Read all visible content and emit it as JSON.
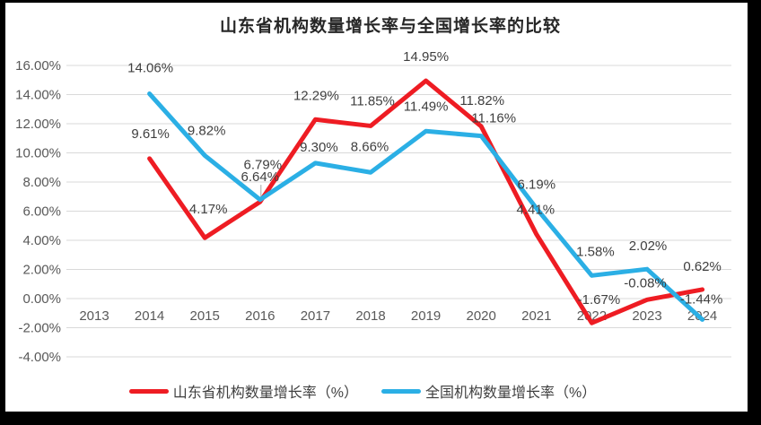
{
  "chart_data": {
    "type": "line",
    "title": "山东省机构数量增长率与全国增长率的比较",
    "categories": [
      "2013",
      "2014",
      "2015",
      "2016",
      "2017",
      "2018",
      "2019",
      "2020",
      "2021",
      "2022",
      "2023",
      "2024"
    ],
    "xlabel": "",
    "ylabel": "",
    "ylim": [
      -4,
      16
    ],
    "y_tick_step": 2,
    "y_ticks": [
      "16.00%",
      "14.00%",
      "12.00%",
      "10.00%",
      "8.00%",
      "6.00%",
      "4.00%",
      "2.00%",
      "0.00%",
      "-2.00%",
      "-4.00%"
    ],
    "grid": true,
    "legend_position": "bottom",
    "series": [
      {
        "name": "山东省机构数量增长率（%）",
        "color": "#ee1c23",
        "values": [
          null,
          9.61,
          4.17,
          6.64,
          12.29,
          11.85,
          14.95,
          11.82,
          4.41,
          -1.67,
          -0.08,
          0.62
        ],
        "point_labels": [
          "",
          "9.61%",
          "4.17%",
          "6.64%",
          "12.29%",
          "11.85%",
          "14.95%",
          "11.82%",
          "4.41%",
          "-1.67%",
          "-0.08%",
          "0.62%"
        ],
        "label_offsets": [
          null,
          [
            1,
            -28
          ],
          [
            4,
            -32
          ],
          [
            0,
            -28
          ],
          [
            1,
            -27
          ],
          [
            2,
            -28
          ],
          [
            0,
            -27
          ],
          [
            1,
            -29
          ],
          [
            -1,
            -28
          ],
          [
            8,
            -26
          ],
          [
            -2,
            -19
          ],
          [
            0,
            -26
          ]
        ]
      },
      {
        "name": "全国机构数量增长率（%）",
        "color": "#2bafe5",
        "values": [
          null,
          14.06,
          9.82,
          6.79,
          9.3,
          8.66,
          11.49,
          11.16,
          6.19,
          1.58,
          2.02,
          -1.44
        ],
        "point_labels": [
          "",
          "14.06%",
          "9.82%",
          "6.79%",
          "9.30%",
          "8.66%",
          "11.49%",
          "11.16%",
          "6.19%",
          "1.58%",
          "2.02%",
          "-1.44%"
        ],
        "label_offsets": [
          null,
          [
            1,
            -29
          ],
          [
            2,
            -28
          ],
          [
            3,
            -39
          ],
          [
            4,
            -18
          ],
          [
            -1,
            -29
          ],
          [
            0,
            -28
          ],
          [
            14,
            -20
          ],
          [
            0,
            -27
          ],
          [
            4,
            -27
          ],
          [
            1,
            -26
          ],
          [
            -1,
            -23
          ]
        ]
      }
    ],
    "leader_lines": [
      {
        "series": 0,
        "category_index": 3
      }
    ]
  },
  "colors": {
    "grid": "#d9d9d9",
    "axis_text": "#595959",
    "label_text": "#3f3f3f",
    "title_text": "#262626",
    "leader": "#a6a6a6",
    "background": "#ffffff",
    "frame": "#000000"
  }
}
